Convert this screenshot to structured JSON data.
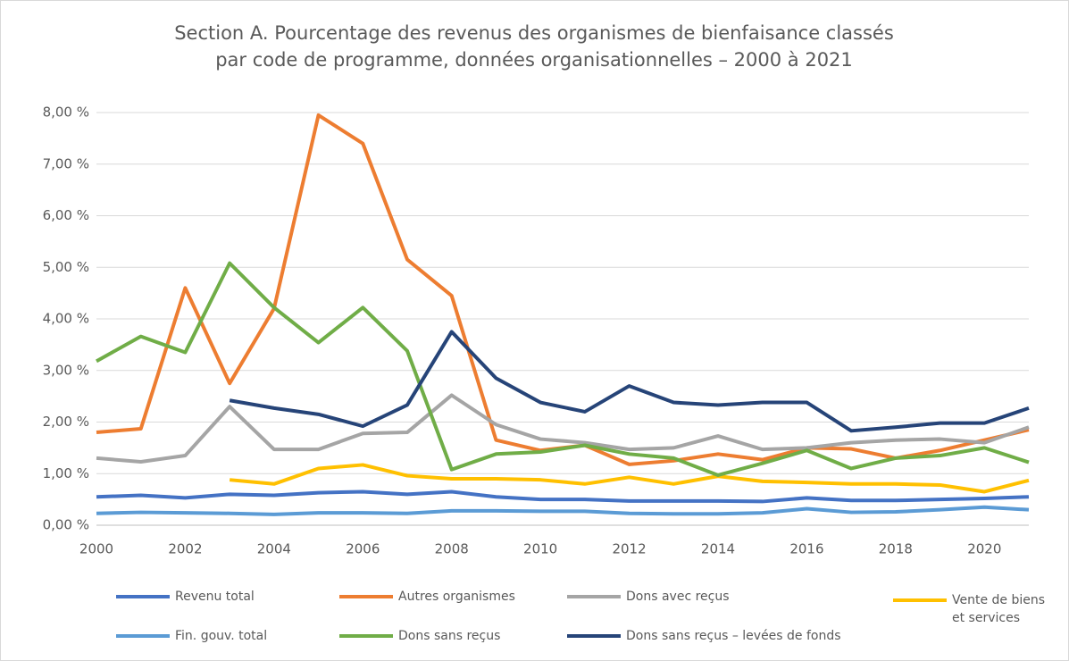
{
  "chart_data": {
    "type": "line",
    "title": [
      "Section A. Pourcentage des revenus des organismes de bienfaisance classés",
      "par code de programme, données organisationnelles – 2000 à 2021"
    ],
    "x": [
      2000,
      2001,
      2002,
      2003,
      2004,
      2005,
      2006,
      2007,
      2008,
      2009,
      2010,
      2011,
      2012,
      2013,
      2014,
      2015,
      2016,
      2017,
      2018,
      2019,
      2020,
      2021
    ],
    "xlim": [
      2000,
      2021
    ],
    "xticks": [
      2000,
      2002,
      2004,
      2006,
      2008,
      2010,
      2012,
      2014,
      2016,
      2018,
      2020
    ],
    "ylim": [
      0,
      8
    ],
    "yticks": [
      {
        "value": 0,
        "label": "0,00 %"
      },
      {
        "value": 1,
        "label": "1,00 %"
      },
      {
        "value": 2,
        "label": "2,00 %"
      },
      {
        "value": 3,
        "label": "3,00 %"
      },
      {
        "value": 4,
        "label": "4,00 %"
      },
      {
        "value": 5,
        "label": "5,00 %"
      },
      {
        "value": 6,
        "label": "6,00 %"
      },
      {
        "value": 7,
        "label": "7,00 %"
      },
      {
        "value": 8,
        "label": "8,00 %"
      }
    ],
    "grid": true,
    "series": [
      {
        "name": "Revenu total",
        "color": "#4472c4",
        "values": [
          0.55,
          0.58,
          0.53,
          0.6,
          0.58,
          0.63,
          0.65,
          0.6,
          0.65,
          0.55,
          0.5,
          0.5,
          0.47,
          0.47,
          0.47,
          0.46,
          0.53,
          0.48,
          0.48,
          0.5,
          0.52,
          0.55
        ]
      },
      {
        "name": "Autres organismes",
        "color": "#ed7d31",
        "values": [
          1.8,
          1.87,
          4.6,
          2.75,
          4.2,
          7.95,
          7.4,
          5.15,
          4.45,
          1.65,
          1.45,
          1.55,
          1.18,
          1.25,
          1.38,
          1.27,
          1.5,
          1.48,
          1.3,
          1.45,
          1.65,
          1.85
        ]
      },
      {
        "name": "Dons avec reçus",
        "color": "#a5a5a5",
        "values": [
          1.3,
          1.23,
          1.35,
          2.3,
          1.47,
          1.47,
          1.78,
          1.8,
          2.52,
          1.95,
          1.67,
          1.6,
          1.47,
          1.5,
          1.73,
          1.47,
          1.5,
          1.6,
          1.65,
          1.67,
          1.6,
          1.9
        ]
      },
      {
        "name": "Vente de biens et services",
        "color": "#ffc000",
        "values": [
          null,
          null,
          null,
          0.88,
          0.8,
          1.1,
          1.17,
          0.96,
          0.9,
          0.9,
          0.88,
          0.8,
          0.93,
          0.8,
          0.95,
          0.85,
          0.83,
          0.8,
          0.8,
          0.78,
          0.65,
          0.87
        ]
      },
      {
        "name": "Fin. gouv. total",
        "color": "#5b9bd5",
        "values": [
          0.23,
          0.25,
          0.24,
          0.23,
          0.21,
          0.24,
          0.24,
          0.23,
          0.28,
          0.28,
          0.27,
          0.27,
          0.23,
          0.22,
          0.22,
          0.24,
          0.32,
          0.25,
          0.26,
          0.3,
          0.35,
          0.3
        ]
      },
      {
        "name": "Dons sans reçus",
        "color": "#70ad47",
        "values": [
          3.18,
          3.66,
          3.35,
          5.08,
          4.22,
          3.54,
          4.22,
          3.38,
          1.08,
          1.38,
          1.42,
          1.55,
          1.38,
          1.3,
          0.97,
          1.2,
          1.45,
          1.1,
          1.3,
          1.35,
          1.5,
          1.22
        ]
      },
      {
        "name": "Dons sans reçus – levées de fonds",
        "color": "#264478",
        "values": [
          null,
          null,
          null,
          2.42,
          2.27,
          2.15,
          1.92,
          2.33,
          3.75,
          2.85,
          2.38,
          2.2,
          2.7,
          2.38,
          2.33,
          2.38,
          2.38,
          1.83,
          1.9,
          1.98,
          1.98,
          2.27
        ]
      }
    ]
  }
}
